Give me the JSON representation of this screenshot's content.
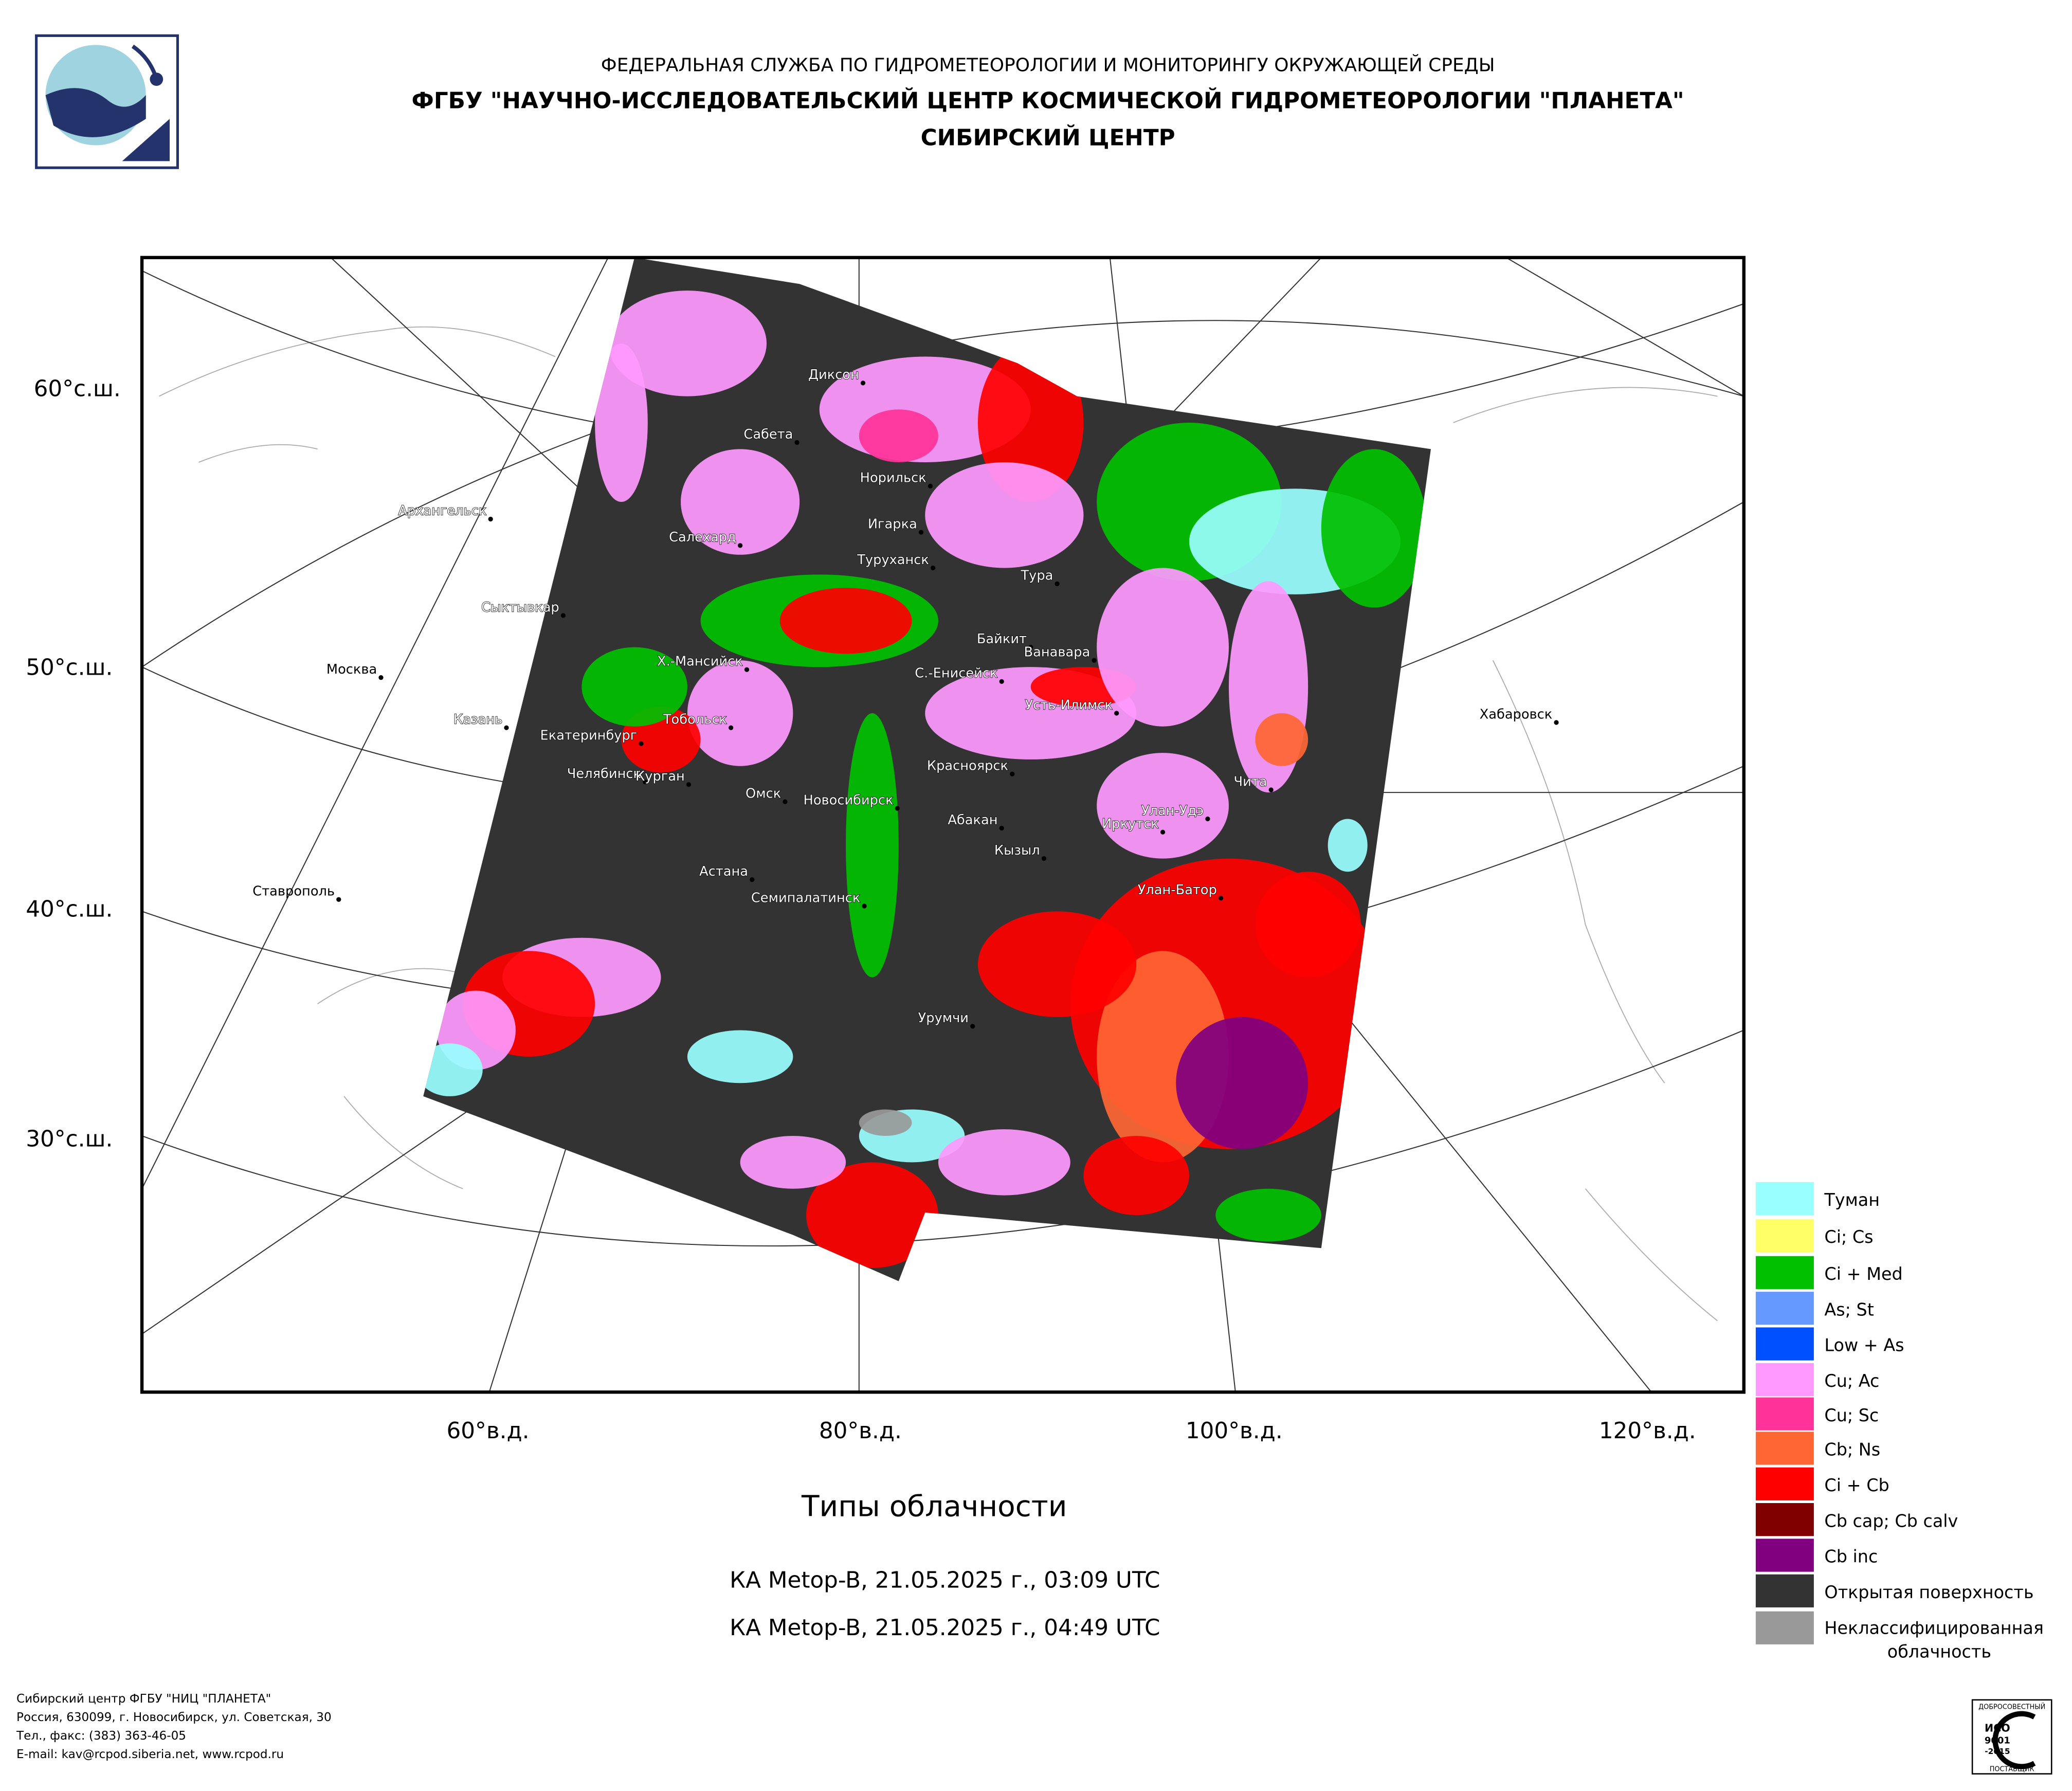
{
  "header": {
    "org": "ФЕДЕРАЛЬНАЯ СЛУЖБА ПО ГИДРОМЕТЕОРОЛОГИИ И МОНИТОРИНГУ ОКРУЖАЮЩЕЙ СРЕДЫ",
    "center": "ФГБУ \"НАУЧНО-ИССЛЕДОВАТЕЛЬСКИЙ ЦЕНТР КОСМИЧЕСКОЙ ГИДРОМЕТЕОРОЛОГИИ \"ПЛАНЕТА\"",
    "branch": "СИБИРСКИЙ ЦЕНТР"
  },
  "map": {
    "lat_labels": [
      "60°с.ш.",
      "50°с.ш.",
      "40°с.ш.",
      "30°с.ш."
    ],
    "lon_labels": [
      "60°в.д.",
      "80°в.д.",
      "100°в.д.",
      "120°в.д."
    ],
    "cities": [
      "Диксон",
      "Сабета",
      "Норильск",
      "Архангельск",
      "Игарка",
      "Салехард",
      "Туруханск",
      "Тура",
      "Сыктывкар",
      "Байкит",
      "Ванавара",
      "Москва",
      "Х.-Мансийск",
      "С.-Енисейск",
      "Усть-Илимск",
      "Казань",
      "Тобольск",
      "Хабаровск",
      "Екатеринбург",
      "Челябинск",
      "Курган",
      "Чита",
      "Красноярск",
      "Омск",
      "Новосибирск",
      "Улан-Удэ",
      "Абакан",
      "Иркутск",
      "Кызыл",
      "Астана",
      "Улан-Батор",
      "Ставрополь",
      "Семипалатинск",
      "Урумчи"
    ]
  },
  "title": "Типы облачности",
  "passes": [
    "КА Metop-B, 21.05.2025 г., 03:09 UTC",
    "КА Metop-B, 21.05.2025 г., 04:49 UTC"
  ],
  "legend": [
    {
      "label": "Туман",
      "color": "#99ffff"
    },
    {
      "label": "Ci; Cs",
      "color": "#ffff66"
    },
    {
      "label": "Ci + Med",
      "color": "#00c000"
    },
    {
      "label": "As; St",
      "color": "#6699ff"
    },
    {
      "label": "Low + As",
      "color": "#0050ff"
    },
    {
      "label": "Cu; Ac",
      "color": "#ff99ff"
    },
    {
      "label": "Cu; Sc",
      "color": "#ff3399"
    },
    {
      "label": "Cb; Ns",
      "color": "#ff6633"
    },
    {
      "label": "Ci + Cb",
      "color": "#ff0000"
    },
    {
      "label": "Cb cap; Cb calv",
      "color": "#800000"
    },
    {
      "label": "Cb inc",
      "color": "#800080"
    },
    {
      "label": "Открытая поверхность",
      "color": "#333333"
    },
    {
      "lines": [
        "Неклассифицированная",
        "облачность"
      ],
      "color": "#999999"
    }
  ],
  "footer": [
    "Сибирский центр ФГБУ \"НИЦ \"ПЛАНЕТА\"",
    "Россия, 630099, г. Новосибирск, ул. Советская, 30",
    "Тел., факс: (383) 363-46-05",
    "E-mail: kav@rcpod.siberia.net, www.rcpod.ru"
  ],
  "badge": [
    "ДОБРОСОВЕСТНЫЙ",
    "ИСО",
    "9001",
    "-2015",
    "ПОСТАВЩИК"
  ]
}
